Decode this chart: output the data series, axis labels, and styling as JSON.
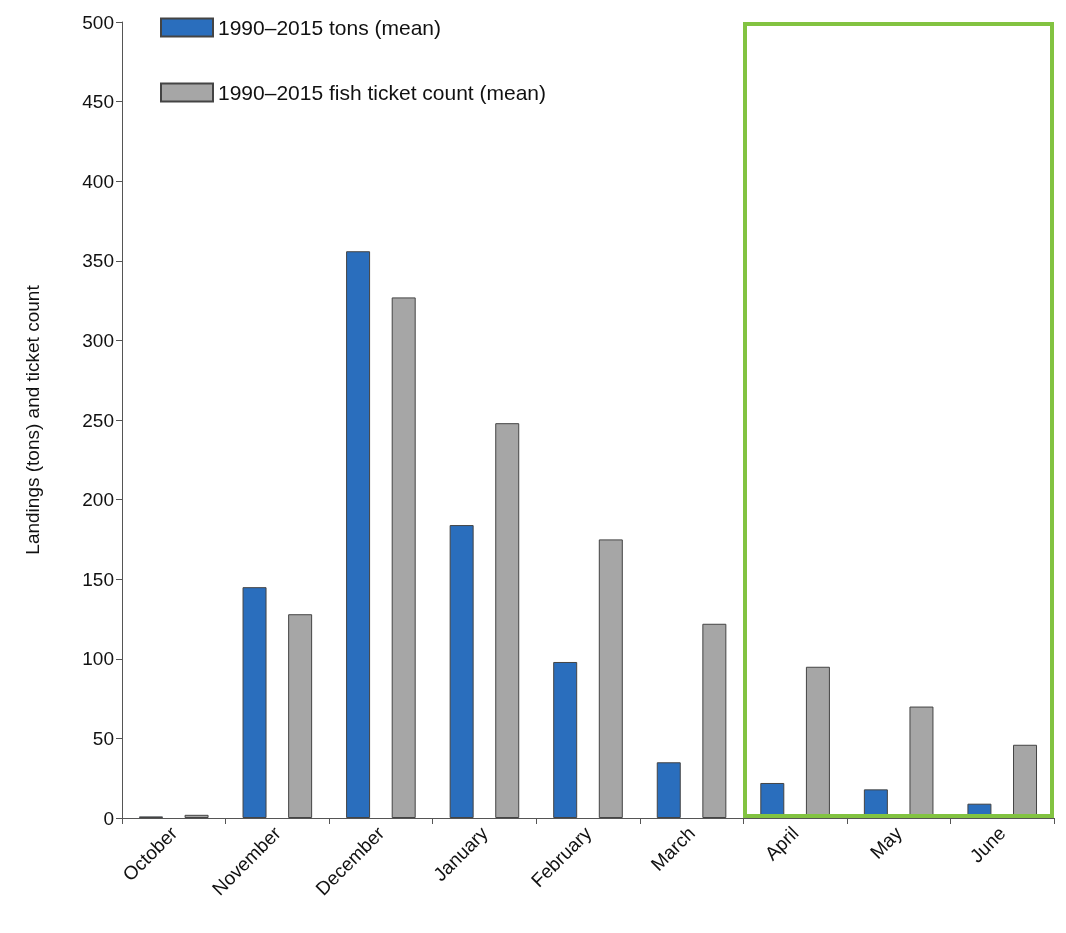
{
  "chart_data": {
    "type": "bar",
    "ylabel": "Landings (tons) and ticket count",
    "categories": [
      "October",
      "November",
      "December",
      "January",
      "February",
      "March",
      "April",
      "May",
      "June"
    ],
    "series": [
      {
        "name": "1990–2015 tons (mean)",
        "color": "#2a6ebd",
        "values": [
          1,
          145,
          356,
          184,
          98,
          35,
          22,
          18,
          9
        ]
      },
      {
        "name": "1990–2015 fish ticket count (mean)",
        "color": "#a6a6a6",
        "values": [
          2,
          128,
          327,
          248,
          175,
          122,
          95,
          70,
          46
        ]
      }
    ],
    "ylim": [
      0,
      500
    ],
    "yticks": [
      0,
      50,
      100,
      150,
      200,
      250,
      300,
      350,
      400,
      450,
      500
    ],
    "grid": false,
    "legend": "top left"
  }
}
